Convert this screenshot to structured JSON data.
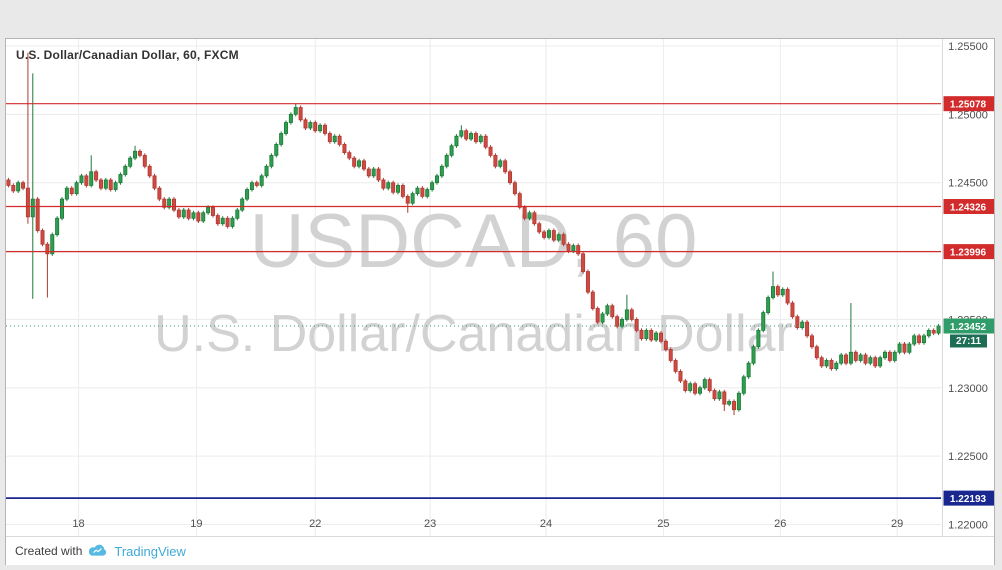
{
  "chart": {
    "legend": "U.S. Dollar/Canadian Dollar, 60, FXCM",
    "watermark_line1": "USDCAD, 60",
    "watermark_line2": "U.S. Dollar/Canadian Dollar",
    "colors": {
      "up": "#2f9e4f",
      "up_border": "#1d7a3a",
      "down": "#cf4a41",
      "down_border": "#b03a33",
      "grid": "#ececec",
      "axis_text": "#4f4f4f",
      "axis_line": "#d9d9d9",
      "watermark": "#d2d2d2",
      "resistance": "#d22b2b",
      "support": "#1a2790",
      "last": "#2f9c6a",
      "countdown_bg": "#1d6e55"
    }
  },
  "footer": {
    "created_with": "Created with",
    "brand": "TradingView"
  },
  "chart_data": {
    "type": "candlestick",
    "title": "U.S. Dollar/Canadian Dollar, 60, FXCM",
    "symbol": "USDCAD",
    "interval": "60",
    "exchange": "FXCM",
    "price_divisor": 100000,
    "ylim": [
      1.21916,
      1.25551
    ],
    "y_ticks": [
      1.255,
      1.25,
      1.245,
      1.24,
      1.235,
      1.23,
      1.225,
      1.22
    ],
    "x_labels": [
      {
        "label": "18",
        "index": 14.4
      },
      {
        "label": "19",
        "index": 38.6
      },
      {
        "label": "22",
        "index": 63.0
      },
      {
        "label": "23",
        "index": 86.6
      },
      {
        "label": "24",
        "index": 110.4
      },
      {
        "label": "25",
        "index": 134.5
      },
      {
        "label": "26",
        "index": 158.5
      },
      {
        "label": "29",
        "index": 182.5
      }
    ],
    "levels": [
      {
        "price": 1.25078,
        "label": "1.25078",
        "role": "resistance"
      },
      {
        "price": 1.24326,
        "label": "1.24326",
        "role": "resistance"
      },
      {
        "price": 1.23996,
        "label": "1.23996",
        "role": "resistance"
      },
      {
        "price": 1.22193,
        "label": "1.22193",
        "role": "support"
      }
    ],
    "last_price": {
      "price": 1.23452,
      "label": "1.23452",
      "countdown": "27:11"
    },
    "candles": [
      [
        124520,
        124535,
        124465,
        124480
      ],
      [
        124480,
        124495,
        124425,
        124440
      ],
      [
        124440,
        124515,
        124425,
        124500
      ],
      [
        124500,
        124515,
        124445,
        124460
      ],
      [
        124460,
        125450,
        124200,
        124250
      ],
      [
        124250,
        125300,
        123650,
        124380
      ],
      [
        124380,
        124395,
        124135,
        124150
      ],
      [
        124150,
        124165,
        124035,
        124050
      ],
      [
        124050,
        124065,
        123660,
        123980
      ],
      [
        123980,
        124135,
        123965,
        124120
      ],
      [
        124120,
        124255,
        124105,
        124240
      ],
      [
        124240,
        124395,
        124225,
        124380
      ],
      [
        124380,
        124475,
        124365,
        124460
      ],
      [
        124460,
        124475,
        124405,
        124420
      ],
      [
        124420,
        124515,
        124405,
        124500
      ],
      [
        124500,
        124565,
        124485,
        124550
      ],
      [
        124550,
        124565,
        124465,
        124480
      ],
      [
        124480,
        124700,
        124465,
        124580
      ],
      [
        124580,
        124595,
        124505,
        124520
      ],
      [
        124520,
        124535,
        124445,
        124460
      ],
      [
        124460,
        124535,
        124445,
        124520
      ],
      [
        124520,
        124535,
        124435,
        124450
      ],
      [
        124450,
        124515,
        124435,
        124500
      ],
      [
        124500,
        124575,
        124485,
        124560
      ],
      [
        124560,
        124635,
        124545,
        124620
      ],
      [
        124620,
        124695,
        124605,
        124680
      ],
      [
        124680,
        124770,
        124665,
        124730
      ],
      [
        124730,
        124745,
        124685,
        124700
      ],
      [
        124700,
        124715,
        124605,
        124620
      ],
      [
        124620,
        124635,
        124535,
        124550
      ],
      [
        124550,
        124565,
        124445,
        124460
      ],
      [
        124460,
        124475,
        124365,
        124380
      ],
      [
        124380,
        124395,
        124305,
        124320
      ],
      [
        124320,
        124395,
        124305,
        124380
      ],
      [
        124380,
        124395,
        124285,
        124300
      ],
      [
        124300,
        124315,
        124235,
        124250
      ],
      [
        124250,
        124315,
        124235,
        124300
      ],
      [
        124300,
        124315,
        124225,
        124240
      ],
      [
        124240,
        124295,
        124225,
        124280
      ],
      [
        124280,
        124295,
        124205,
        124220
      ],
      [
        124220,
        124295,
        124205,
        124280
      ],
      [
        124280,
        124335,
        124265,
        124320
      ],
      [
        124320,
        124335,
        124245,
        124260
      ],
      [
        124260,
        124275,
        124185,
        124200
      ],
      [
        124200,
        124255,
        124185,
        124240
      ],
      [
        124240,
        124255,
        124165,
        124180
      ],
      [
        124180,
        124255,
        124165,
        124240
      ],
      [
        124240,
        124315,
        124225,
        124300
      ],
      [
        124300,
        124395,
        124285,
        124380
      ],
      [
        124380,
        124465,
        124365,
        124450
      ],
      [
        124450,
        124515,
        124435,
        124500
      ],
      [
        124500,
        124515,
        124465,
        124480
      ],
      [
        124480,
        124565,
        124465,
        124550
      ],
      [
        124550,
        124635,
        124535,
        124620
      ],
      [
        124620,
        124715,
        124605,
        124700
      ],
      [
        124700,
        124795,
        124685,
        124780
      ],
      [
        124780,
        124875,
        124765,
        124860
      ],
      [
        124860,
        124955,
        124845,
        124940
      ],
      [
        124940,
        125015,
        124925,
        125000
      ],
      [
        125000,
        125078,
        124985,
        125050
      ],
      [
        125050,
        125065,
        124945,
        124960
      ],
      [
        124960,
        124975,
        124885,
        124900
      ],
      [
        124900,
        124955,
        124885,
        124940
      ],
      [
        124940,
        124955,
        124865,
        124880
      ],
      [
        124880,
        124935,
        124865,
        124920
      ],
      [
        124920,
        124935,
        124845,
        124860
      ],
      [
        124860,
        124875,
        124785,
        124800
      ],
      [
        124800,
        124855,
        124785,
        124840
      ],
      [
        124840,
        124855,
        124765,
        124780
      ],
      [
        124780,
        124795,
        124705,
        124720
      ],
      [
        124720,
        124735,
        124665,
        124680
      ],
      [
        124680,
        124695,
        124605,
        124620
      ],
      [
        124620,
        124675,
        124605,
        124660
      ],
      [
        124660,
        124675,
        124585,
        124600
      ],
      [
        124600,
        124615,
        124535,
        124550
      ],
      [
        124550,
        124615,
        124535,
        124600
      ],
      [
        124600,
        124615,
        124505,
        124520
      ],
      [
        124520,
        124535,
        124445,
        124460
      ],
      [
        124460,
        124515,
        124445,
        124500
      ],
      [
        124500,
        124515,
        124415,
        124430
      ],
      [
        124430,
        124495,
        124415,
        124480
      ],
      [
        124480,
        124495,
        124385,
        124400
      ],
      [
        124400,
        124415,
        124280,
        124350
      ],
      [
        124350,
        124435,
        124335,
        124420
      ],
      [
        124420,
        124475,
        124405,
        124460
      ],
      [
        124460,
        124475,
        124385,
        124400
      ],
      [
        124400,
        124465,
        124385,
        124450
      ],
      [
        124450,
        124515,
        124435,
        124500
      ],
      [
        124500,
        124565,
        124485,
        124550
      ],
      [
        124550,
        124635,
        124535,
        124620
      ],
      [
        124620,
        124715,
        124605,
        124700
      ],
      [
        124700,
        124785,
        124685,
        124770
      ],
      [
        124770,
        124855,
        124755,
        124840
      ],
      [
        124840,
        124920,
        124825,
        124880
      ],
      [
        124880,
        124895,
        124805,
        124820
      ],
      [
        124820,
        124875,
        124805,
        124860
      ],
      [
        124860,
        124875,
        124785,
        124800
      ],
      [
        124800,
        124855,
        124785,
        124840
      ],
      [
        124840,
        124855,
        124745,
        124760
      ],
      [
        124760,
        124775,
        124685,
        124700
      ],
      [
        124700,
        124715,
        124605,
        124620
      ],
      [
        124620,
        124675,
        124605,
        124660
      ],
      [
        124660,
        124675,
        124565,
        124580
      ],
      [
        124580,
        124595,
        124485,
        124500
      ],
      [
        124500,
        124515,
        124405,
        124420
      ],
      [
        124420,
        124435,
        124305,
        124320
      ],
      [
        124320,
        124335,
        124225,
        124240
      ],
      [
        124240,
        124295,
        124225,
        124280
      ],
      [
        124280,
        124295,
        124185,
        124200
      ],
      [
        124200,
        124215,
        124125,
        124140
      ],
      [
        124140,
        124155,
        124085,
        124100
      ],
      [
        124100,
        124165,
        124085,
        124150
      ],
      [
        124150,
        124165,
        124065,
        124080
      ],
      [
        124080,
        124135,
        124065,
        124120
      ],
      [
        124120,
        124135,
        124035,
        124050
      ],
      [
        124050,
        124065,
        123985,
        124000
      ],
      [
        124000,
        124055,
        123985,
        124040
      ],
      [
        124040,
        124055,
        123965,
        123980
      ],
      [
        123980,
        123995,
        123835,
        123850
      ],
      [
        123850,
        123865,
        123685,
        123700
      ],
      [
        123700,
        123715,
        123565,
        123580
      ],
      [
        123580,
        123595,
        123465,
        123480
      ],
      [
        123480,
        123555,
        123465,
        123540
      ],
      [
        123540,
        123615,
        123525,
        123600
      ],
      [
        123600,
        123615,
        123505,
        123520
      ],
      [
        123520,
        123535,
        123435,
        123450
      ],
      [
        123450,
        123515,
        123435,
        123500
      ],
      [
        123500,
        123680,
        123485,
        123570
      ],
      [
        123570,
        123585,
        123485,
        123500
      ],
      [
        123500,
        123515,
        123405,
        123420
      ],
      [
        123420,
        123435,
        123345,
        123360
      ],
      [
        123360,
        123435,
        123345,
        123420
      ],
      [
        123420,
        123435,
        123335,
        123350
      ],
      [
        123350,
        123415,
        123335,
        123400
      ],
      [
        123400,
        123415,
        123325,
        123340
      ],
      [
        123340,
        123355,
        123265,
        123280
      ],
      [
        123280,
        123295,
        123185,
        123200
      ],
      [
        123200,
        123215,
        123105,
        123120
      ],
      [
        123120,
        123135,
        123035,
        123050
      ],
      [
        123050,
        123065,
        122965,
        122980
      ],
      [
        122980,
        123045,
        122965,
        123030
      ],
      [
        123030,
        123045,
        122945,
        122960
      ],
      [
        122960,
        123015,
        122945,
        123000
      ],
      [
        123000,
        123075,
        122985,
        123060
      ],
      [
        123060,
        123075,
        122965,
        122980
      ],
      [
        122980,
        122995,
        122905,
        122920
      ],
      [
        122920,
        122985,
        122905,
        122970
      ],
      [
        122970,
        122985,
        122830,
        122880
      ],
      [
        122880,
        122915,
        122865,
        122900
      ],
      [
        122900,
        122915,
        122800,
        122840
      ],
      [
        122840,
        122975,
        122825,
        122960
      ],
      [
        122960,
        123095,
        122945,
        123080
      ],
      [
        123080,
        123195,
        123065,
        123180
      ],
      [
        123180,
        123315,
        123165,
        123300
      ],
      [
        123300,
        123435,
        123285,
        123420
      ],
      [
        123420,
        123565,
        123405,
        123550
      ],
      [
        123550,
        123675,
        123535,
        123660
      ],
      [
        123660,
        123850,
        123645,
        123740
      ],
      [
        123740,
        123755,
        123665,
        123680
      ],
      [
        123680,
        123735,
        123665,
        123720
      ],
      [
        123720,
        123735,
        123605,
        123620
      ],
      [
        123620,
        123635,
        123505,
        123520
      ],
      [
        123520,
        123535,
        123425,
        123440
      ],
      [
        123440,
        123495,
        123425,
        123480
      ],
      [
        123480,
        123495,
        123365,
        123380
      ],
      [
        123380,
        123395,
        123285,
        123300
      ],
      [
        123300,
        123315,
        123205,
        123220
      ],
      [
        123220,
        123235,
        123145,
        123160
      ],
      [
        123160,
        123215,
        123145,
        123200
      ],
      [
        123200,
        123215,
        123125,
        123140
      ],
      [
        123140,
        123195,
        123125,
        123180
      ],
      [
        123180,
        123255,
        123165,
        123240
      ],
      [
        123240,
        123255,
        123165,
        123180
      ],
      [
        123180,
        123620,
        123165,
        123260
      ],
      [
        123260,
        123275,
        123185,
        123200
      ],
      [
        123200,
        123255,
        123185,
        123240
      ],
      [
        123240,
        123255,
        123165,
        123180
      ],
      [
        123180,
        123235,
        123165,
        123220
      ],
      [
        123220,
        123235,
        123145,
        123160
      ],
      [
        123160,
        123235,
        123145,
        123220
      ],
      [
        123220,
        123275,
        123205,
        123260
      ],
      [
        123260,
        123275,
        123185,
        123200
      ],
      [
        123200,
        123275,
        123185,
        123260
      ],
      [
        123260,
        123335,
        123245,
        123320
      ],
      [
        123320,
        123335,
        123245,
        123260
      ],
      [
        123260,
        123335,
        123245,
        123320
      ],
      [
        123320,
        123395,
        123305,
        123380
      ],
      [
        123380,
        123395,
        123315,
        123330
      ],
      [
        123330,
        123395,
        123315,
        123380
      ],
      [
        123380,
        123435,
        123365,
        123420
      ],
      [
        123420,
        123435,
        123385,
        123400
      ],
      [
        123400,
        123467,
        123385,
        123452
      ]
    ]
  }
}
